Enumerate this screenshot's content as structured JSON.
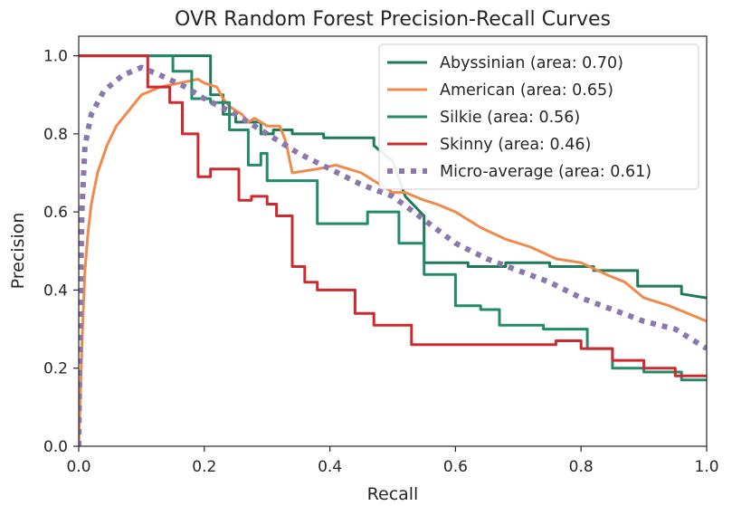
{
  "chart_data": {
    "type": "line",
    "title": "OVR Random Forest Precision-Recall Curves",
    "xlabel": "Recall",
    "ylabel": "Precision",
    "xlim": [
      0,
      1
    ],
    "ylim": [
      0,
      1.05
    ],
    "xticks": [
      "0.0",
      "0.2",
      "0.4",
      "0.6",
      "0.8",
      "1.0"
    ],
    "yticks": [
      "0.0",
      "0.2",
      "0.4",
      "0.6",
      "0.8",
      "1.0"
    ],
    "grid": false,
    "legend_position": "top-right",
    "series": [
      {
        "name": "Abyssinian (area: 0.70)",
        "color": "#1f7a5c",
        "style": "solid",
        "x": [
          0,
          0.005,
          0.005,
          0.21,
          0.21,
          0.23,
          0.23,
          0.25,
          0.25,
          0.29,
          0.29,
          0.31,
          0.31,
          0.34,
          0.34,
          0.39,
          0.39,
          0.47,
          0.47,
          0.5,
          0.52,
          0.55,
          0.55,
          0.62,
          0.62,
          0.68,
          0.68,
          0.75,
          0.75,
          0.82,
          0.82,
          0.89,
          0.89,
          0.96,
          0.96,
          1.0
        ],
        "y": [
          1.0,
          1.0,
          1.0,
          1.0,
          0.9,
          0.9,
          0.85,
          0.85,
          0.83,
          0.83,
          0.8,
          0.8,
          0.81,
          0.81,
          0.8,
          0.8,
          0.79,
          0.79,
          0.77,
          0.73,
          0.64,
          0.59,
          0.47,
          0.47,
          0.46,
          0.46,
          0.47,
          0.47,
          0.46,
          0.46,
          0.45,
          0.45,
          0.41,
          0.41,
          0.39,
          0.38
        ]
      },
      {
        "name": "American (area: 0.65)",
        "color": "#f08a4b",
        "style": "solid",
        "x": [
          0.0,
          0.003,
          0.006,
          0.01,
          0.015,
          0.02,
          0.03,
          0.045,
          0.06,
          0.08,
          0.1,
          0.13,
          0.16,
          0.19,
          0.2,
          0.22,
          0.23,
          0.24,
          0.25,
          0.26,
          0.27,
          0.28,
          0.3,
          0.32,
          0.33,
          0.34,
          0.38,
          0.41,
          0.45,
          0.5,
          0.52,
          0.55,
          0.57,
          0.6,
          0.64,
          0.68,
          0.72,
          0.76,
          0.8,
          0.84,
          0.87,
          0.9,
          0.94,
          0.97,
          1.0
        ],
        "y": [
          0.0,
          0.15,
          0.3,
          0.45,
          0.55,
          0.62,
          0.7,
          0.77,
          0.82,
          0.86,
          0.9,
          0.92,
          0.93,
          0.94,
          0.93,
          0.92,
          0.89,
          0.87,
          0.86,
          0.85,
          0.83,
          0.84,
          0.82,
          0.82,
          0.78,
          0.7,
          0.71,
          0.72,
          0.7,
          0.65,
          0.65,
          0.63,
          0.62,
          0.6,
          0.56,
          0.53,
          0.51,
          0.48,
          0.47,
          0.44,
          0.42,
          0.38,
          0.36,
          0.34,
          0.32
        ]
      },
      {
        "name": "Silkie (area: 0.56)",
        "color": "#238a6b",
        "style": "solid",
        "x": [
          0,
          0.005,
          0.005,
          0.15,
          0.15,
          0.18,
          0.18,
          0.21,
          0.21,
          0.24,
          0.24,
          0.27,
          0.27,
          0.29,
          0.29,
          0.3,
          0.3,
          0.38,
          0.38,
          0.46,
          0.46,
          0.51,
          0.51,
          0.55,
          0.55,
          0.6,
          0.6,
          0.64,
          0.64,
          0.67,
          0.67,
          0.74,
          0.74,
          0.81,
          0.81,
          0.85,
          0.85,
          0.9,
          0.9,
          0.96,
          0.96,
          1.0
        ],
        "y": [
          1.0,
          1.0,
          1.0,
          1.0,
          0.96,
          0.96,
          0.89,
          0.89,
          0.88,
          0.88,
          0.81,
          0.81,
          0.72,
          0.72,
          0.75,
          0.75,
          0.68,
          0.68,
          0.57,
          0.57,
          0.6,
          0.6,
          0.52,
          0.52,
          0.44,
          0.44,
          0.36,
          0.36,
          0.35,
          0.35,
          0.31,
          0.31,
          0.3,
          0.3,
          0.25,
          0.25,
          0.2,
          0.2,
          0.19,
          0.19,
          0.17,
          0.17
        ]
      },
      {
        "name": "Skinny (area: 0.46)",
        "color": "#cc2a2e",
        "style": "solid",
        "x": [
          0,
          0.005,
          0.005,
          0.11,
          0.11,
          0.145,
          0.145,
          0.165,
          0.165,
          0.19,
          0.19,
          0.21,
          0.21,
          0.255,
          0.255,
          0.275,
          0.275,
          0.3,
          0.3,
          0.315,
          0.315,
          0.34,
          0.34,
          0.36,
          0.36,
          0.38,
          0.38,
          0.44,
          0.44,
          0.47,
          0.47,
          0.53,
          0.53,
          0.76,
          0.76,
          0.8,
          0.8,
          0.85,
          0.85,
          0.9,
          0.9,
          0.95,
          0.95,
          1.0
        ],
        "y": [
          1.0,
          1.0,
          1.0,
          1.0,
          0.92,
          0.92,
          0.88,
          0.88,
          0.8,
          0.8,
          0.69,
          0.69,
          0.71,
          0.71,
          0.63,
          0.63,
          0.64,
          0.64,
          0.62,
          0.62,
          0.59,
          0.59,
          0.46,
          0.46,
          0.42,
          0.42,
          0.4,
          0.4,
          0.34,
          0.34,
          0.31,
          0.31,
          0.26,
          0.26,
          0.27,
          0.27,
          0.25,
          0.25,
          0.22,
          0.22,
          0.2,
          0.2,
          0.18,
          0.18
        ]
      },
      {
        "name": "Micro-average (area: 0.61)",
        "color": "#8b78aa",
        "style": "dotted",
        "x": [
          0.0,
          0.002,
          0.005,
          0.01,
          0.02,
          0.04,
          0.07,
          0.1,
          0.13,
          0.17,
          0.2,
          0.25,
          0.3,
          0.35,
          0.4,
          0.45,
          0.5,
          0.55,
          0.6,
          0.65,
          0.7,
          0.75,
          0.8,
          0.85,
          0.9,
          0.95,
          1.0
        ],
        "y": [
          0.0,
          0.3,
          0.6,
          0.77,
          0.85,
          0.91,
          0.95,
          0.97,
          0.95,
          0.92,
          0.89,
          0.85,
          0.8,
          0.75,
          0.71,
          0.67,
          0.64,
          0.58,
          0.52,
          0.48,
          0.45,
          0.42,
          0.38,
          0.35,
          0.32,
          0.3,
          0.25
        ]
      }
    ]
  }
}
